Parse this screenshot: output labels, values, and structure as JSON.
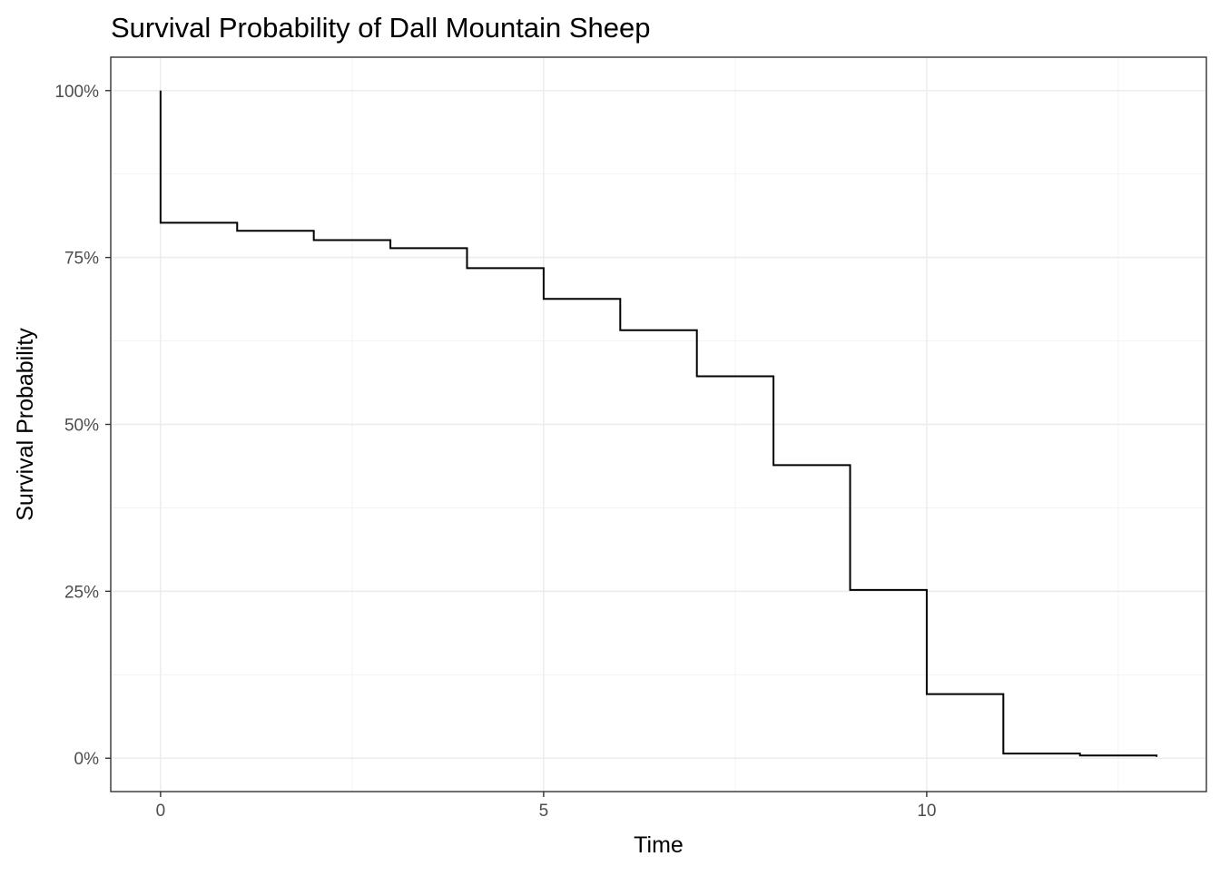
{
  "chart_data": {
    "type": "line",
    "style": "step",
    "title": "Survival Probability of Dall Mountain Sheep",
    "xlabel": "Time",
    "ylabel": "Survival Probability",
    "xlim": [
      -0.65,
      13.65
    ],
    "ylim": [
      -0.05,
      1.05
    ],
    "x_ticks": [
      0,
      5,
      10
    ],
    "x_tick_labels": [
      "0",
      "5",
      "10"
    ],
    "x_minor_ticks": [
      2.5,
      7.5,
      12.5
    ],
    "y_ticks": [
      0,
      0.25,
      0.5,
      0.75,
      1.0
    ],
    "y_tick_labels": [
      "0%",
      "25%",
      "50%",
      "75%",
      "100%"
    ],
    "y_minor_ticks": [
      0.125,
      0.375,
      0.625,
      0.875
    ],
    "grid": true,
    "line_color": "#000000",
    "series": [
      {
        "x": [
          0,
          0,
          1,
          2,
          3,
          4,
          5,
          6,
          7,
          8,
          9,
          10,
          11,
          12,
          13
        ],
        "y": [
          1.0,
          0.802,
          0.79,
          0.776,
          0.764,
          0.734,
          0.688,
          0.641,
          0.572,
          0.439,
          0.252,
          0.096,
          0.007,
          0.004,
          0.002
        ]
      }
    ]
  }
}
